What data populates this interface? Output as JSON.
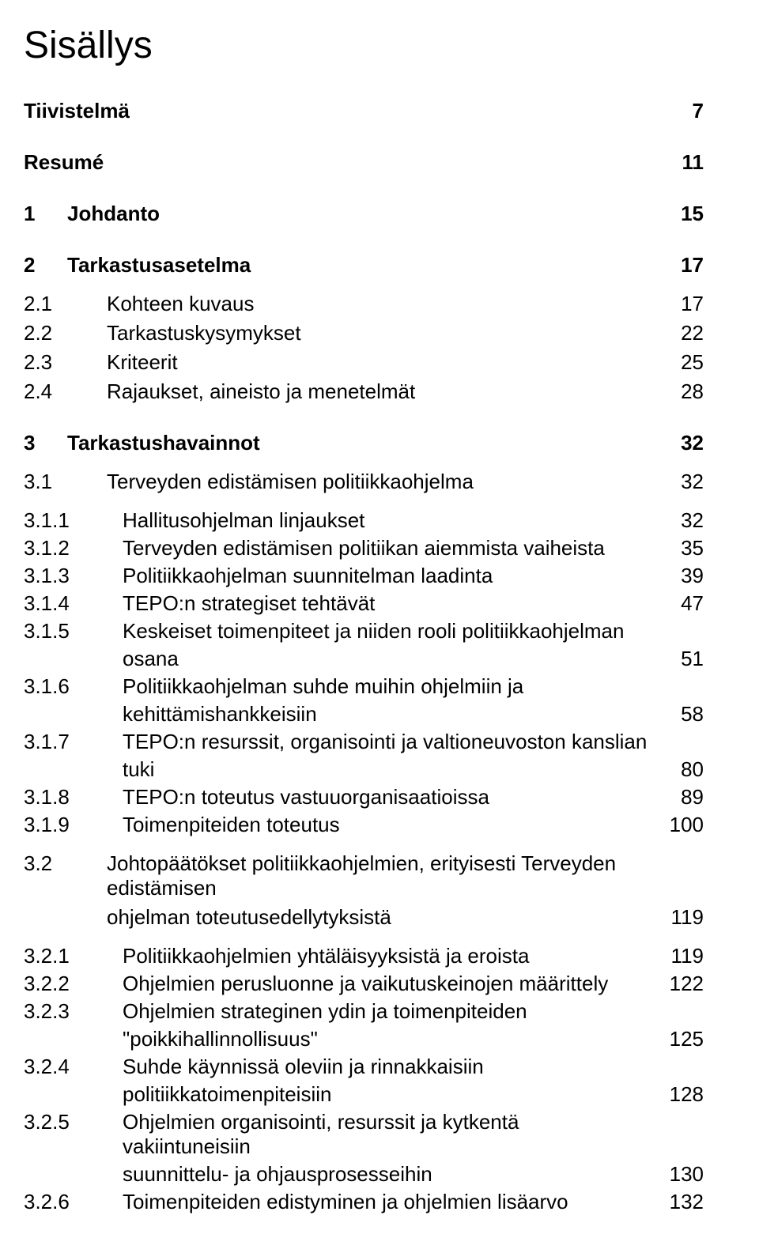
{
  "doc": {
    "title": "Sisällys",
    "font_family": "Arial",
    "title_fontsize_pt": 36,
    "body_fontsize_pt": 20,
    "colors": {
      "text": "#000000",
      "background": "#ffffff"
    }
  },
  "toc": {
    "tiivistelma": {
      "num": "",
      "label": "Tiivistelmä",
      "page": "7"
    },
    "resume": {
      "num": "",
      "label": "Resumé",
      "page": "11"
    },
    "s1": {
      "num": "1",
      "label": "Johdanto",
      "page": "15"
    },
    "s2": {
      "num": "2",
      "label": "Tarkastusasetelma",
      "page": "17"
    },
    "s2_1": {
      "num": "2.1",
      "label": "Kohteen kuvaus",
      "page": "17"
    },
    "s2_2": {
      "num": "2.2",
      "label": "Tarkastuskysymykset",
      "page": "22"
    },
    "s2_3": {
      "num": "2.3",
      "label": "Kriteerit",
      "page": "25"
    },
    "s2_4": {
      "num": "2.4",
      "label": "Rajaukset, aineisto ja menetelmät",
      "page": "28"
    },
    "s3": {
      "num": "3",
      "label": "Tarkastushavainnot",
      "page": "32"
    },
    "s3_1": {
      "num": "3.1",
      "label": "Terveyden edistämisen politiikkaohjelma",
      "page": "32"
    },
    "s3_1_1": {
      "num": "3.1.1",
      "label": "Hallitusohjelman linjaukset",
      "page": "32"
    },
    "s3_1_2": {
      "num": "3.1.2",
      "label": "Terveyden edistämisen politiikan aiemmista vaiheista",
      "page": "35"
    },
    "s3_1_3": {
      "num": "3.1.3",
      "label": "Politiikkaohjelman suunnitelman laadinta",
      "page": "39"
    },
    "s3_1_4": {
      "num": "3.1.4",
      "label": "TEPO:n strategiset tehtävät",
      "page": "47"
    },
    "s3_1_5a": {
      "num": "3.1.5",
      "label": "Keskeiset toimenpiteet ja niiden rooli politiikkaohjelman",
      "page": ""
    },
    "s3_1_5b": {
      "num": "",
      "label": "osana",
      "page": "51"
    },
    "s3_1_6a": {
      "num": "3.1.6",
      "label": "Politiikkaohjelman suhde muihin ohjelmiin ja",
      "page": ""
    },
    "s3_1_6b": {
      "num": "",
      "label": "kehittämishankkeisiin",
      "page": "58"
    },
    "s3_1_7a": {
      "num": "3.1.7",
      "label": "TEPO:n resurssit, organisointi ja valtioneuvoston kanslian",
      "page": ""
    },
    "s3_1_7b": {
      "num": "",
      "label": "tuki",
      "page": "80"
    },
    "s3_1_8": {
      "num": "3.1.8",
      "label": "TEPO:n toteutus vastuuorganisaatioissa",
      "page": "89"
    },
    "s3_1_9": {
      "num": "3.1.9",
      "label": "Toimenpiteiden toteutus",
      "page": "100"
    },
    "s3_2a": {
      "num": "3.2",
      "label": "Johtopäätökset politiikkaohjelmien, erityisesti Terveyden edistämisen",
      "page": ""
    },
    "s3_2b": {
      "num": "",
      "label": "ohjelman toteutusedellytyksistä",
      "page": "119"
    },
    "s3_2_1": {
      "num": "3.2.1",
      "label": "Politiikkaohjelmien yhtäläisyyksistä ja eroista",
      "page": "119"
    },
    "s3_2_2": {
      "num": "3.2.2",
      "label": "Ohjelmien perusluonne ja vaikutuskeinojen määrittely",
      "page": "122"
    },
    "s3_2_3a": {
      "num": "3.2.3",
      "label": "Ohjelmien strateginen ydin ja toimenpiteiden",
      "page": ""
    },
    "s3_2_3b": {
      "num": "",
      "label": "\"poikkihallinnollisuus\"",
      "page": "125"
    },
    "s3_2_4a": {
      "num": "3.2.4",
      "label": "Suhde käynnissä oleviin ja rinnakkaisiin",
      "page": ""
    },
    "s3_2_4b": {
      "num": "",
      "label": "politiikkatoimenpiteisiin",
      "page": "128"
    },
    "s3_2_5a": {
      "num": "3.2.5",
      "label": "Ohjelmien organisointi, resurssit ja kytkentä vakiintuneisiin",
      "page": ""
    },
    "s3_2_5b": {
      "num": "",
      "label": "suunnittelu- ja ohjausprosesseihin",
      "page": "130"
    },
    "s3_2_6": {
      "num": "3.2.6",
      "label": "Toimenpiteiden edistyminen ja ohjelmien lisäarvo",
      "page": "132"
    }
  }
}
